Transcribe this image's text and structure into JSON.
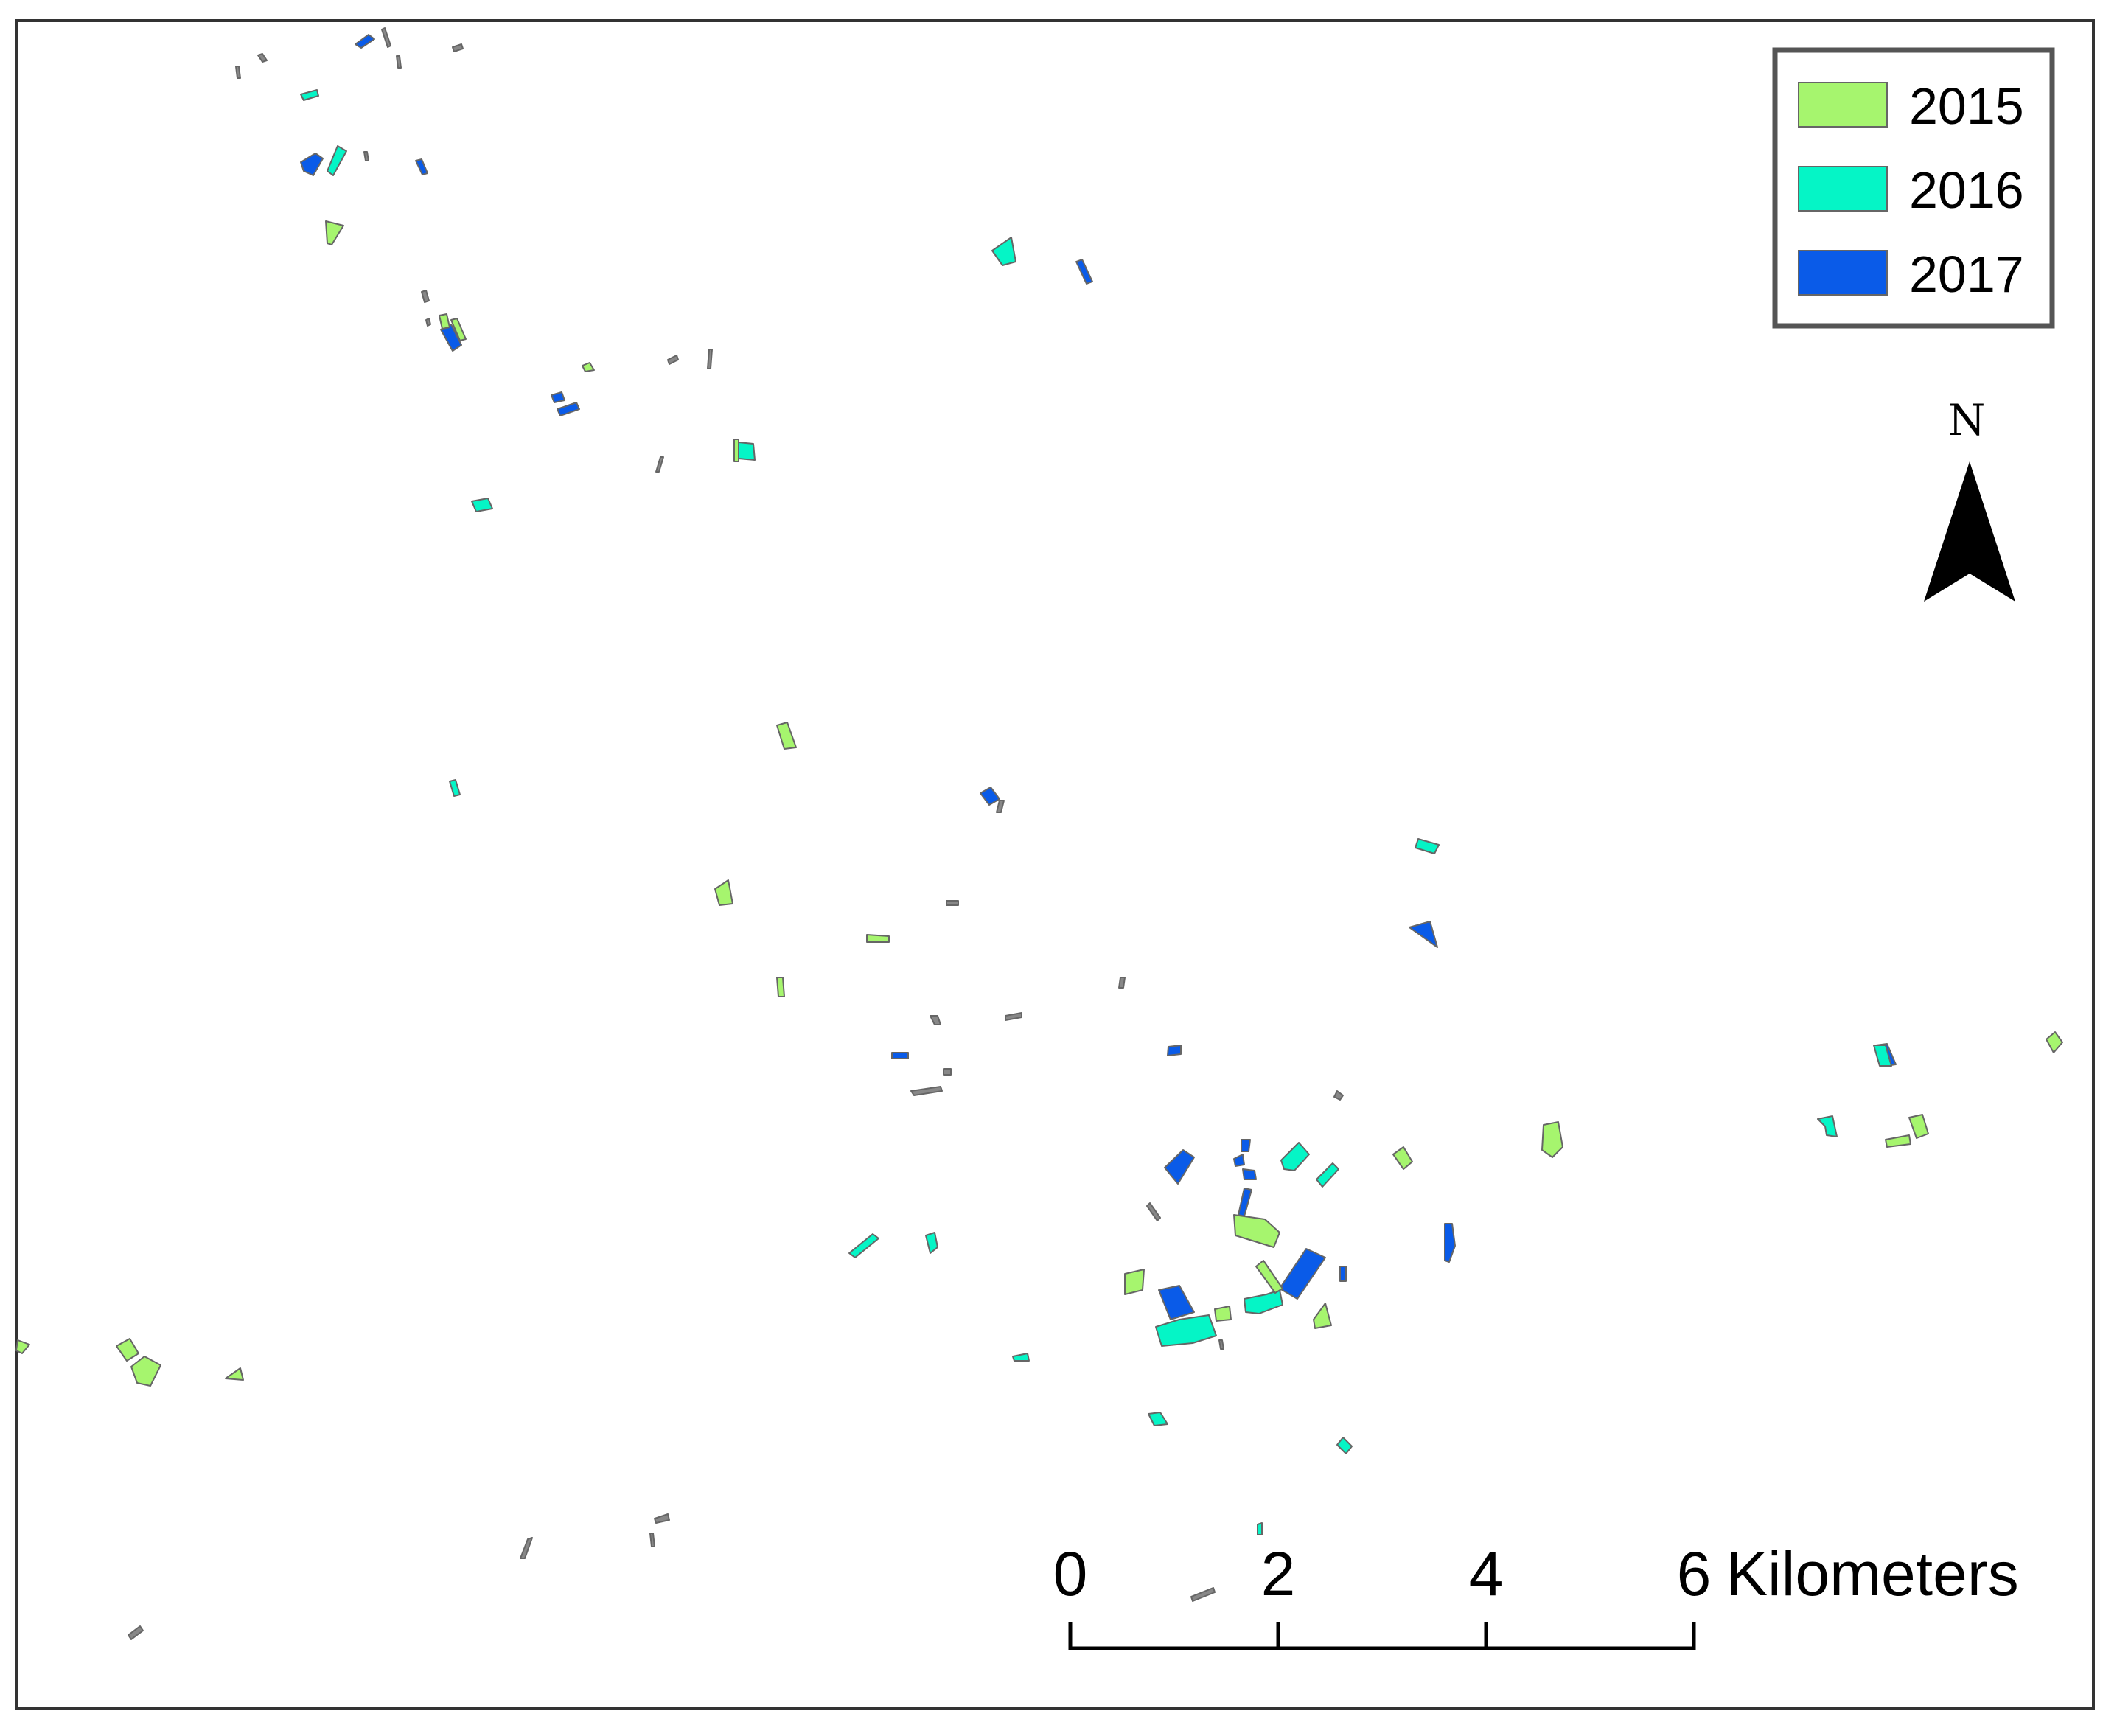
{
  "legend": {
    "items": [
      {
        "label": "2015",
        "color": "#a6f56e"
      },
      {
        "label": "2016",
        "color": "#05f5c6"
      },
      {
        "label": "2017",
        "color": "#0a5be8"
      }
    ]
  },
  "north_arrow": {
    "label": "N"
  },
  "scale_bar": {
    "ticks": [
      "0",
      "2",
      "4",
      "6"
    ],
    "unit": "Kilometers"
  },
  "colors": {
    "outline": "#666666",
    "frame": "#333333"
  }
}
